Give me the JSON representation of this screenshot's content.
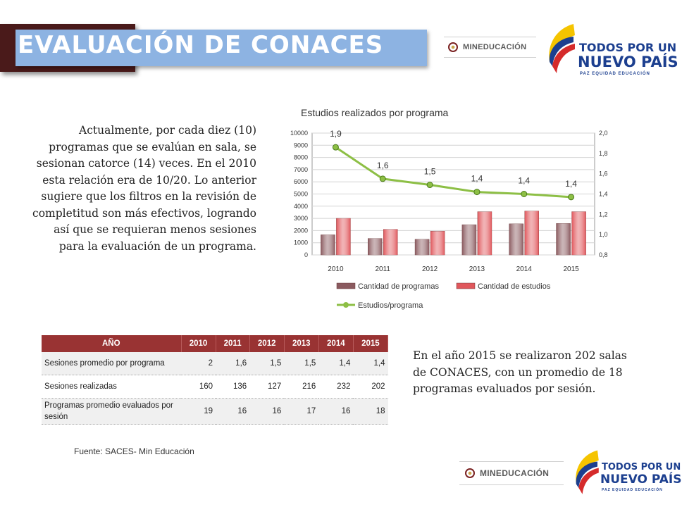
{
  "header": {
    "title": "EVALUACIÓN DE CONACES"
  },
  "logos": {
    "mineducacion": "MINEDUCACIÓN",
    "tpun_line1": "TODOS POR UN",
    "tpun_line2": "NUEVO PAÍS",
    "tpun_line3": "PAZ  EQUIDAD  EDUCACIÓN"
  },
  "left_text": "Actualmente, por cada diez (10) programas que se evalúan en sala, se sesionan catorce (14) veces. En el 2010 esta relación era de 10/20. Lo anterior sugiere que los filtros en la revisión de completitud son más efectivos, logrando así que se requieran menos sesiones para la evaluación de un programa.",
  "right_text": "En el año 2015 se realizaron 202 salas de CONACES, con un promedio de 18 programas evaluados por sesión.",
  "source": "Fuente: SACES- Min Educación",
  "table": {
    "headers": [
      "AÑO",
      "2010",
      "2011",
      "2012",
      "2013",
      "2014",
      "2015"
    ],
    "rows": [
      {
        "label": "Sesiones promedio por programa",
        "values": [
          "2",
          "1,6",
          "1,5",
          "1,5",
          "1,4",
          "1,4"
        ]
      },
      {
        "label": "Sesiones realizadas",
        "values": [
          "160",
          "136",
          "127",
          "216",
          "232",
          "202"
        ]
      },
      {
        "label": "Programas promedio evaluados por sesión",
        "values": [
          "19",
          "16",
          "16",
          "17",
          "16",
          "18"
        ]
      }
    ]
  },
  "chart_data": {
    "type": "bar",
    "title": "Estudios realizados por programa",
    "categories": [
      "2010",
      "2011",
      "2012",
      "2013",
      "2014",
      "2015"
    ],
    "series": [
      {
        "name": "Cantidad de programas",
        "type": "bar",
        "axis": "left",
        "color": "#8a5a5f",
        "values": [
          1650,
          1350,
          1280,
          2480,
          2550,
          2580
        ]
      },
      {
        "name": "Cantidad de estudios",
        "type": "bar",
        "axis": "left",
        "color": "#e0575c",
        "values": [
          3000,
          2100,
          1950,
          3550,
          3600,
          3550
        ]
      },
      {
        "name": "Estudios/programa",
        "type": "line",
        "axis": "right",
        "color": "#8dbf45",
        "values": [
          1.86,
          1.55,
          1.49,
          1.42,
          1.4,
          1.37
        ]
      }
    ],
    "data_labels": [
      "1,9",
      "1,6",
      "1,5",
      "1,4",
      "1,4",
      "1,4"
    ],
    "ylim": [
      0,
      10000
    ],
    "y_ticks": [
      "0",
      "1000",
      "2000",
      "3000",
      "4000",
      "5000",
      "6000",
      "7000",
      "8000",
      "9000",
      "10000"
    ],
    "y2lim": [
      0.8,
      2.0
    ],
    "y2_ticks": [
      "0,8",
      "1,0",
      "1,2",
      "1,4",
      "1,6",
      "1,8",
      "2,0"
    ],
    "grid": true,
    "legend": "bottom"
  }
}
